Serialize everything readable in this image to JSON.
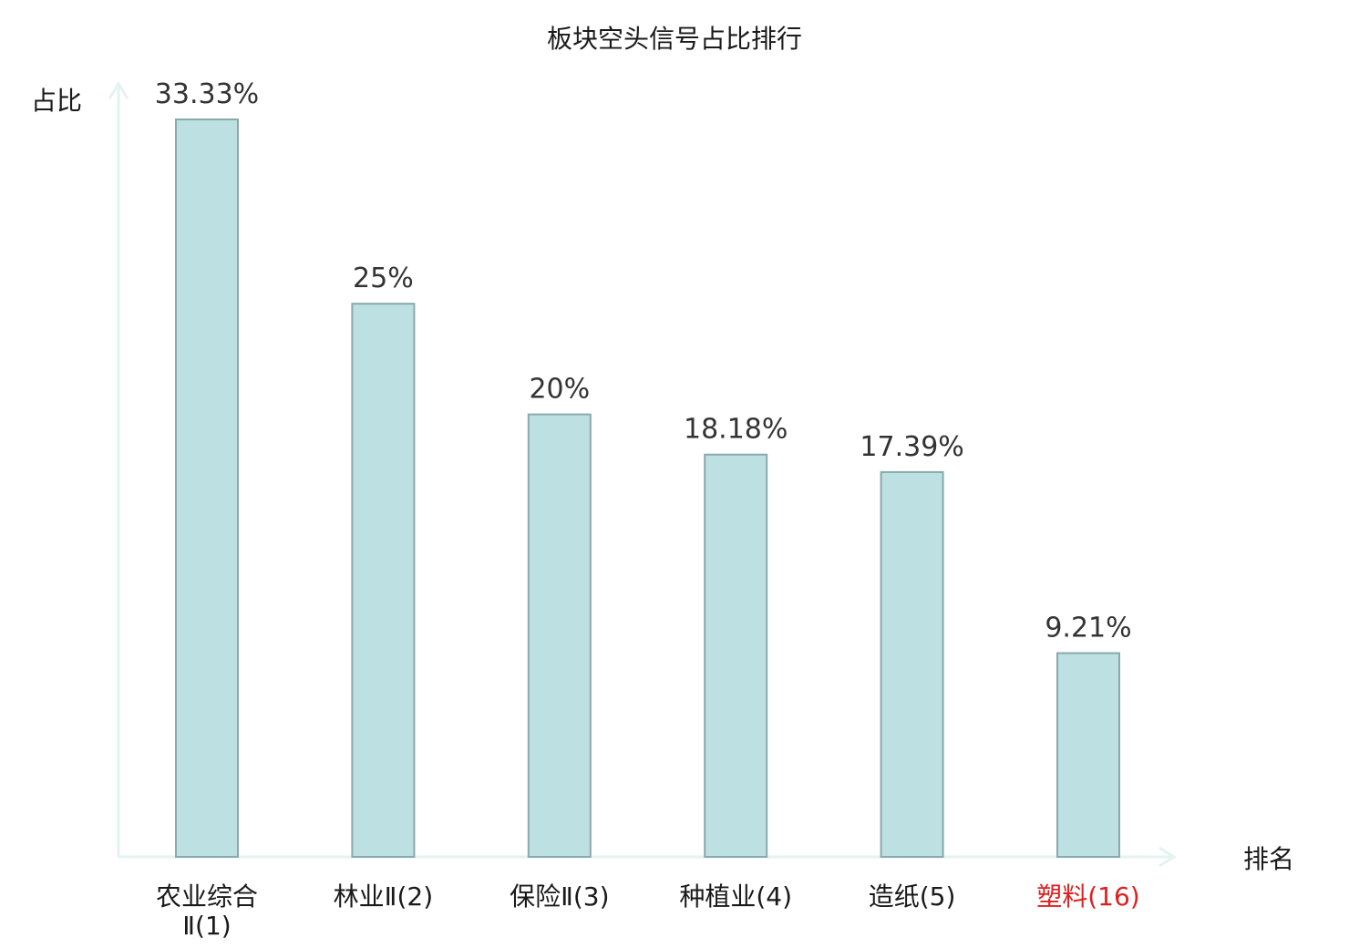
{
  "chart_data": {
    "type": "bar",
    "title": "板块空头信号占比排行",
    "ylabel": "占比",
    "xlabel": "排名",
    "ylim": [
      0,
      35
    ],
    "grid": false,
    "legend": "none",
    "categories": [
      {
        "name": "农业综合Ⅱ",
        "rank": "(1)",
        "highlight": false
      },
      {
        "name": "林业Ⅱ",
        "rank": "(2)",
        "highlight": false
      },
      {
        "name": "保险Ⅱ",
        "rank": "(3)",
        "highlight": false
      },
      {
        "name": "种植业",
        "rank": "(4)",
        "highlight": false
      },
      {
        "name": "造纸",
        "rank": "(5)",
        "highlight": false
      },
      {
        "name": "塑料",
        "rank": "(16)",
        "highlight": true
      }
    ],
    "values": [
      33.33,
      25,
      20,
      18.18,
      17.39,
      9.21
    ],
    "value_labels": [
      "33.33%",
      "25%",
      "20%",
      "18.18%",
      "17.39%",
      "9.21%"
    ]
  },
  "colors": {
    "bar_fill": "#bde0e3",
    "bar_stroke": "#8aa9ab",
    "axis": "#e3f3f1",
    "highlight_text": "#e01e1e"
  }
}
